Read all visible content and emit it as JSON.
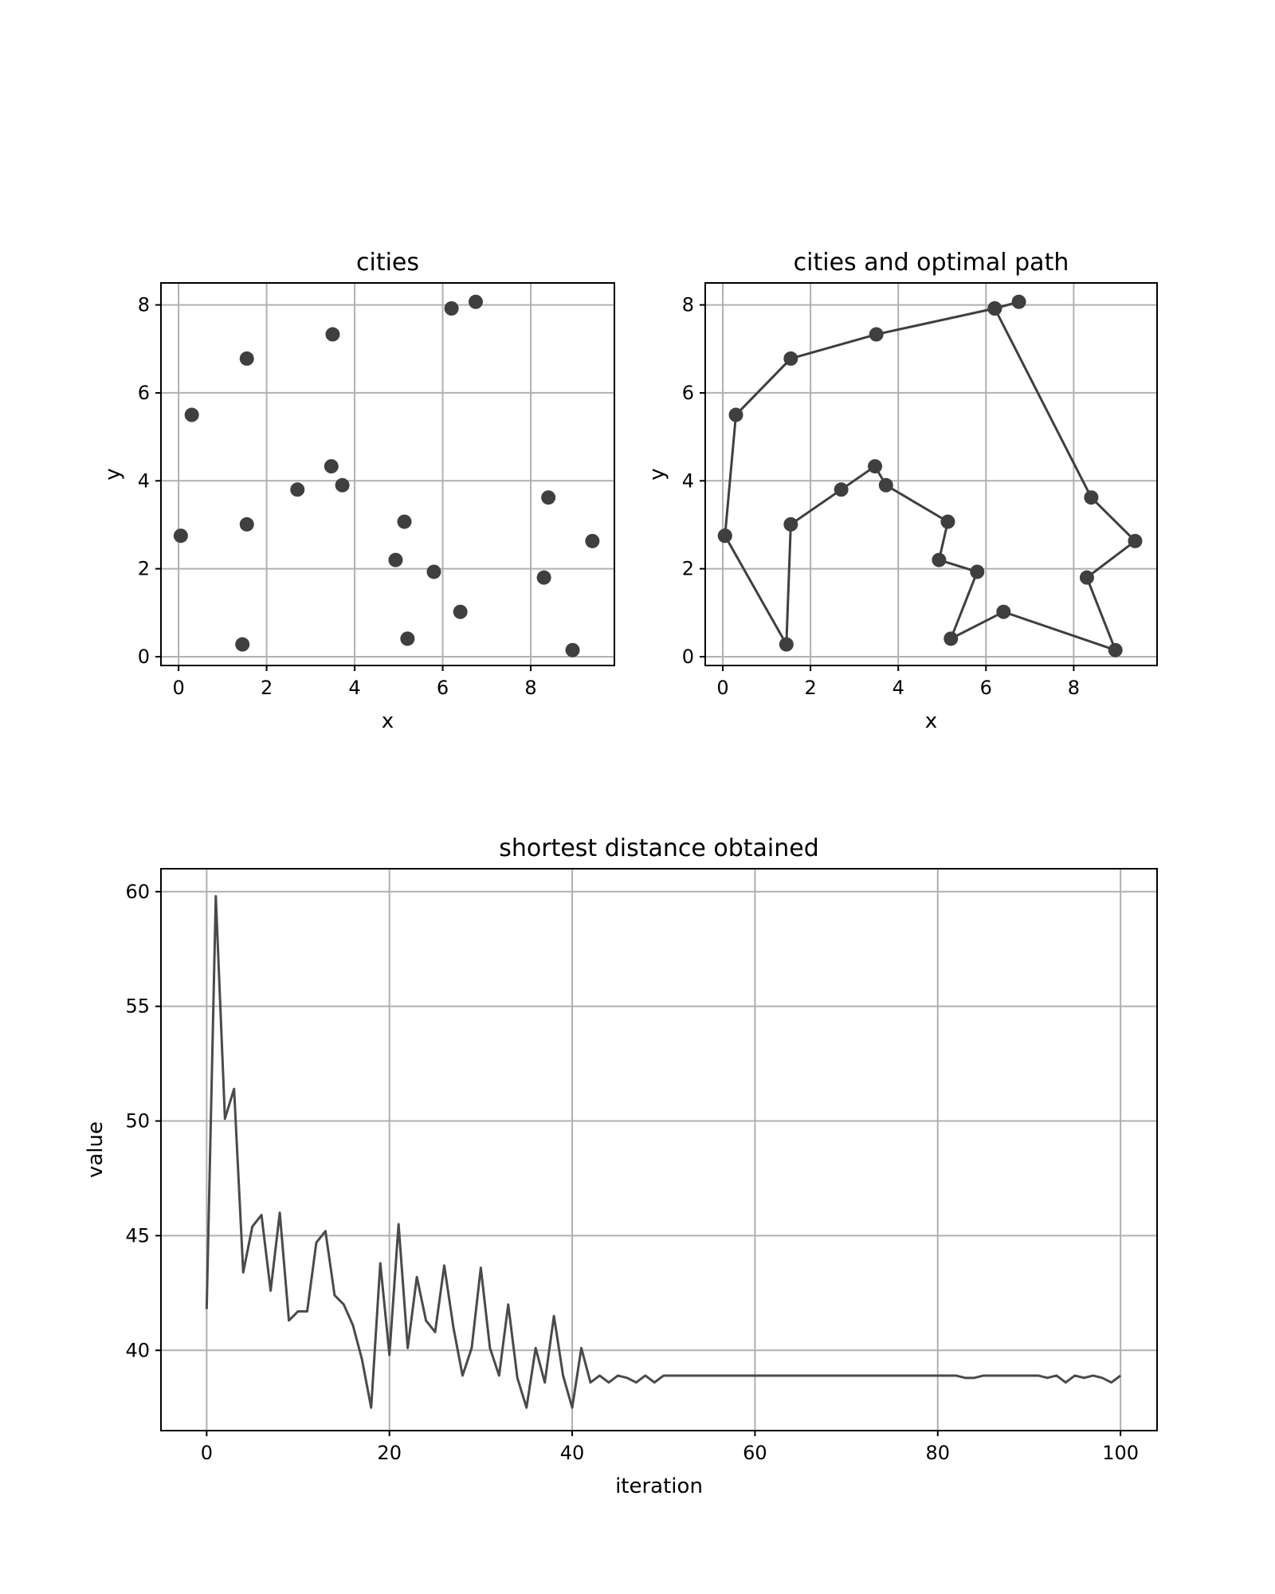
{
  "chart_data": [
    {
      "type": "scatter",
      "title": "cities",
      "xlabel": "x",
      "ylabel": "y",
      "xlim": [
        -0.4,
        9.9
      ],
      "ylim": [
        -0.2,
        8.5
      ],
      "xticks": [
        0,
        2,
        4,
        6,
        8
      ],
      "yticks": [
        0,
        2,
        4,
        6,
        8
      ],
      "grid": true,
      "color": "#3f3f3f",
      "points": [
        {
          "x": 0.05,
          "y": 2.75
        },
        {
          "x": 0.3,
          "y": 5.5
        },
        {
          "x": 1.55,
          "y": 6.78
        },
        {
          "x": 3.5,
          "y": 7.33
        },
        {
          "x": 6.2,
          "y": 7.92
        },
        {
          "x": 6.75,
          "y": 8.07
        },
        {
          "x": 8.4,
          "y": 3.62
        },
        {
          "x": 9.4,
          "y": 2.63
        },
        {
          "x": 8.3,
          "y": 1.8
        },
        {
          "x": 8.95,
          "y": 0.15
        },
        {
          "x": 6.4,
          "y": 1.02
        },
        {
          "x": 5.2,
          "y": 0.41
        },
        {
          "x": 5.8,
          "y": 1.93
        },
        {
          "x": 4.93,
          "y": 2.2
        },
        {
          "x": 5.13,
          "y": 3.07
        },
        {
          "x": 3.72,
          "y": 3.9
        },
        {
          "x": 3.47,
          "y": 4.33
        },
        {
          "x": 2.7,
          "y": 3.8
        },
        {
          "x": 1.55,
          "y": 3.01
        },
        {
          "x": 1.45,
          "y": 0.28
        }
      ]
    },
    {
      "type": "line",
      "title": "cities and optimal path",
      "xlabel": "x",
      "ylabel": "y",
      "xlim": [
        -0.4,
        9.9
      ],
      "ylim": [
        -0.2,
        8.5
      ],
      "xticks": [
        0,
        2,
        4,
        6,
        8
      ],
      "yticks": [
        0,
        2,
        4,
        6,
        8
      ],
      "grid": true,
      "color": "#3f3f3f",
      "markers": true,
      "path": [
        {
          "x": 0.05,
          "y": 2.75
        },
        {
          "x": 0.3,
          "y": 5.5
        },
        {
          "x": 1.55,
          "y": 6.78
        },
        {
          "x": 3.5,
          "y": 7.33
        },
        {
          "x": 6.2,
          "y": 7.92
        },
        {
          "x": 6.75,
          "y": 8.07
        },
        {
          "x": 6.2,
          "y": 7.92
        },
        {
          "x": 8.4,
          "y": 3.62
        },
        {
          "x": 9.4,
          "y": 2.63
        },
        {
          "x": 8.3,
          "y": 1.8
        },
        {
          "x": 8.95,
          "y": 0.15
        },
        {
          "x": 6.4,
          "y": 1.02
        },
        {
          "x": 5.2,
          "y": 0.41
        },
        {
          "x": 5.8,
          "y": 1.93
        },
        {
          "x": 4.93,
          "y": 2.2
        },
        {
          "x": 5.13,
          "y": 3.07
        },
        {
          "x": 3.72,
          "y": 3.9
        },
        {
          "x": 3.47,
          "y": 4.33
        },
        {
          "x": 2.7,
          "y": 3.8
        },
        {
          "x": 1.55,
          "y": 3.01
        },
        {
          "x": 1.45,
          "y": 0.28
        },
        {
          "x": 0.05,
          "y": 2.75
        }
      ]
    },
    {
      "type": "line",
      "title": "shortest distance obtained",
      "xlabel": "iteration",
      "ylabel": "value",
      "xlim": [
        -5,
        104
      ],
      "ylim": [
        36.5,
        61
      ],
      "xticks": [
        0,
        20,
        40,
        60,
        80,
        100
      ],
      "yticks": [
        40,
        45,
        50,
        55,
        60
      ],
      "grid": true,
      "color": "#4a4a4a",
      "x_start": 0,
      "values": [
        41.8,
        59.8,
        50.1,
        51.4,
        43.4,
        45.4,
        45.9,
        42.6,
        46.0,
        41.3,
        41.7,
        41.7,
        44.7,
        45.2,
        42.4,
        42.0,
        41.1,
        39.6,
        37.5,
        43.8,
        39.8,
        45.5,
        40.1,
        43.2,
        41.3,
        40.8,
        43.7,
        41.0,
        38.9,
        40.1,
        43.6,
        40.1,
        38.9,
        42.0,
        38.8,
        37.5,
        40.1,
        38.6,
        41.5,
        38.9,
        37.5,
        40.1,
        38.6,
        38.9,
        38.6,
        38.9,
        38.8,
        38.6,
        38.9,
        38.6,
        38.9,
        38.9,
        38.9,
        38.9,
        38.9,
        38.9,
        38.9,
        38.9,
        38.9,
        38.9,
        38.9,
        38.9,
        38.9,
        38.9,
        38.9,
        38.9,
        38.9,
        38.9,
        38.9,
        38.9,
        38.9,
        38.9,
        38.9,
        38.9,
        38.9,
        38.9,
        38.9,
        38.9,
        38.9,
        38.9,
        38.9,
        38.9,
        38.9,
        38.8,
        38.8,
        38.9,
        38.9,
        38.9,
        38.9,
        38.9,
        38.9,
        38.9,
        38.8,
        38.9,
        38.6,
        38.9,
        38.8,
        38.9,
        38.8,
        38.6,
        38.9
      ]
    }
  ]
}
